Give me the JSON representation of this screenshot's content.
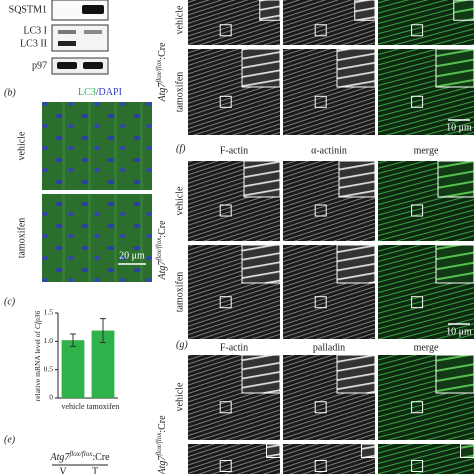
{
  "panel_a": {
    "bands": [
      "SQSTM1",
      "LC3 I",
      "LC3 II",
      "p97"
    ]
  },
  "panel_b": {
    "label": "(b)",
    "stain_1": "LC3",
    "stain_2": "/DAPI",
    "rows": [
      "vehicle",
      "tamoxifen"
    ],
    "scale": "20 μm"
  },
  "chart_data": {
    "type": "bar",
    "label": "(c)",
    "ylabel": "relative mRNA level of ",
    "ylabel_gene": "Cfp36",
    "categories": [
      "vehicle",
      "tamoxifen"
    ],
    "values": [
      1.02,
      1.19
    ],
    "errors": [
      0.11,
      0.21
    ],
    "color": "#2eb24a",
    "ylim": [
      0,
      1.5
    ],
    "yticks": [
      0,
      0.5,
      {
        "value": 1,
        "label": "1.0"
      },
      1.5
    ]
  },
  "panel_e": {
    "label": "(e)",
    "genotype": "Atg7",
    "genotype_sup": "flox/flox",
    "genotype_suffix": ":Cre",
    "lanes": [
      "V",
      "T"
    ]
  },
  "panel_d": {
    "rows": [
      "vehicle",
      "tamoxifen"
    ],
    "genotype": "Atg7",
    "genotype_sup": "flox/flox",
    "genotype_suffix": ":Cre",
    "scale": "10 μm"
  },
  "panel_f": {
    "label": "(f)",
    "columns": [
      "F-actin",
      "α-actinin",
      "merge"
    ],
    "rows": [
      "vehicle",
      "tamoxifen"
    ],
    "genotype": "Atg7",
    "genotype_sup": "flox/flox",
    "genotype_suffix": ":Cre",
    "scale": "10 μm"
  },
  "panel_g": {
    "label": "(g)",
    "columns": [
      "F-actin",
      "palladin",
      "merge"
    ],
    "rows": [
      "vehicle"
    ],
    "genotype": "Atg7",
    "genotype_sup": "flox/flox",
    "genotype_suffix": ":Cre"
  }
}
